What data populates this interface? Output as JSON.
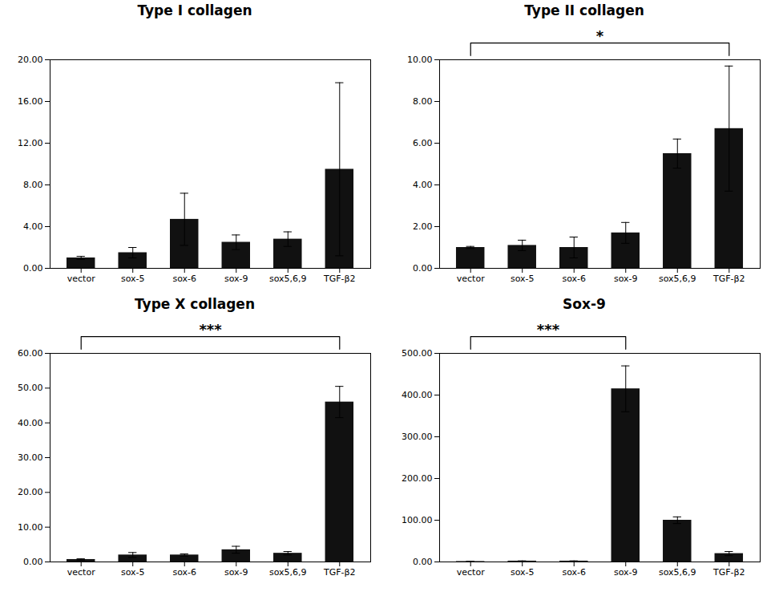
{
  "chart_data": [
    {
      "type": "bar",
      "title": "Type I collagen",
      "categories": [
        "vector",
        "sox-5",
        "sox-6",
        "sox-9",
        "sox5,6,9",
        "TGF-β2"
      ],
      "values": [
        1.0,
        1.5,
        4.7,
        2.5,
        2.8,
        9.5
      ],
      "errors": [
        0.15,
        0.5,
        2.5,
        0.7,
        0.7,
        8.3
      ],
      "color": "#111111",
      "ylim": [
        0,
        20
      ],
      "yticks": [
        {
          "value": 0,
          "label": "0.00"
        },
        {
          "value": 4,
          "label": "4.00"
        },
        {
          "value": 8,
          "label": "8.00"
        },
        {
          "value": 12,
          "label": "12.00"
        },
        {
          "value": 16,
          "label": "16.00"
        },
        {
          "value": 20,
          "label": "20.00"
        }
      ],
      "grid": false
    },
    {
      "type": "bar",
      "title": "Type II collagen",
      "categories": [
        "vector",
        "sox-5",
        "sox-6",
        "sox-9",
        "sox5,6,9",
        "TGF-β2"
      ],
      "values": [
        1.0,
        1.1,
        1.0,
        1.7,
        5.5,
        6.7
      ],
      "errors": [
        0.05,
        0.25,
        0.5,
        0.5,
        0.7,
        3.0
      ],
      "color": "#111111",
      "ylim": [
        0,
        10
      ],
      "yticks": [
        {
          "value": 0,
          "label": "0.00"
        },
        {
          "value": 2,
          "label": "2.00"
        },
        {
          "value": 4,
          "label": "4.00"
        },
        {
          "value": 6,
          "label": "6.00"
        },
        {
          "value": 8,
          "label": "8.00"
        },
        {
          "value": 10,
          "label": "10.00"
        }
      ],
      "grid": false,
      "annotations": [
        {
          "text": "*",
          "x1": "vector",
          "x2": "TGF-β2"
        }
      ]
    },
    {
      "type": "bar",
      "title": "Type X collagen",
      "categories": [
        "vector",
        "sox-5",
        "sox-6",
        "sox-9",
        "sox5,6,9",
        "TGF-β2"
      ],
      "values": [
        0.7,
        2.0,
        2.0,
        3.5,
        2.5,
        46.0
      ],
      "errors": [
        0.2,
        0.7,
        0.3,
        1.0,
        0.5,
        4.5
      ],
      "color": "#111111",
      "ylim": [
        0,
        60
      ],
      "yticks": [
        {
          "value": 0,
          "label": "0.00"
        },
        {
          "value": 10,
          "label": "10.00"
        },
        {
          "value": 20,
          "label": "20.00"
        },
        {
          "value": 30,
          "label": "30.00"
        },
        {
          "value": 40,
          "label": "40.00"
        },
        {
          "value": 50,
          "label": "50.00"
        },
        {
          "value": 60,
          "label": "60.00"
        }
      ],
      "grid": false,
      "annotations": [
        {
          "text": "***",
          "x1": "vector",
          "x2": "TGF-β2"
        }
      ]
    },
    {
      "type": "bar",
      "title": "Sox-9",
      "categories": [
        "vector",
        "sox-5",
        "sox-6",
        "sox-9",
        "sox5,6,9",
        "TGF-β2"
      ],
      "values": [
        1.0,
        2.0,
        2.0,
        415.0,
        100.0,
        20.0
      ],
      "errors": [
        0.3,
        0.5,
        0.5,
        55.0,
        8.0,
        5.0
      ],
      "color": "#111111",
      "ylim": [
        0,
        500
      ],
      "yticks": [
        {
          "value": 0,
          "label": "0.00"
        },
        {
          "value": 100,
          "label": "100.00"
        },
        {
          "value": 200,
          "label": "200.00"
        },
        {
          "value": 300,
          "label": "300.00"
        },
        {
          "value": 400,
          "label": "400.00"
        },
        {
          "value": 500,
          "label": "500.00"
        }
      ],
      "grid": false,
      "annotations": [
        {
          "text": "***",
          "x1": "vector",
          "x2": "sox-9"
        }
      ]
    }
  ]
}
